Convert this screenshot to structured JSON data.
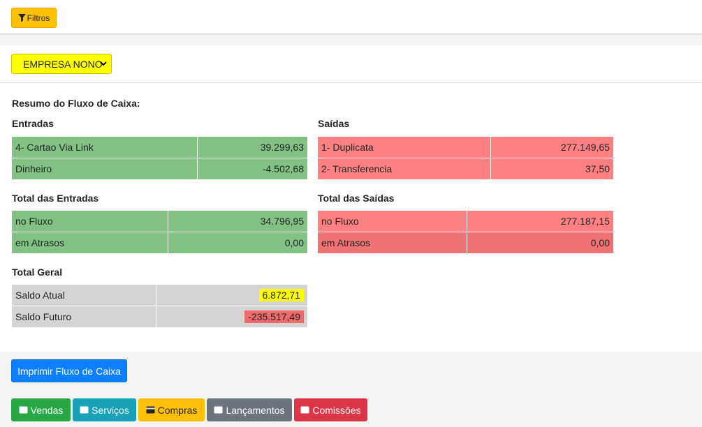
{
  "toolbar": {
    "filtros_label": "Filtros"
  },
  "empresa_select": {
    "value": "EMPRESA NONO"
  },
  "resumo_title": "Resumo do Fluxo de Caixa:",
  "entradas": {
    "title": "Entradas",
    "rows": [
      {
        "label": "4- Cartao Via Link",
        "value": "39.299,63"
      },
      {
        "label": "Dinheiro",
        "value": "-4.502,68"
      }
    ]
  },
  "saidas": {
    "title": "Saídas",
    "rows": [
      {
        "label": "1- Duplicata",
        "value": "277.149,65"
      },
      {
        "label": "2- Transferencia",
        "value": "37,50"
      }
    ]
  },
  "total_entradas": {
    "title": "Total das Entradas",
    "rows": [
      {
        "label": "no Fluxo",
        "value": "34.796,95"
      },
      {
        "label": "em Atrasos",
        "value": "0,00"
      }
    ]
  },
  "total_saidas": {
    "title": "Total das Saídas",
    "rows": [
      {
        "label": "no Fluxo",
        "value": "277.187,15"
      },
      {
        "label": "em Atrasos",
        "value": "0,00"
      }
    ]
  },
  "total_geral": {
    "title": "Total Geral",
    "rows": [
      {
        "label": "Saldo Atual",
        "value": "6.872,71",
        "highlight": "#ffff00"
      },
      {
        "label": "Saldo Futuro",
        "value": "-235.517,49",
        "highlight": "#ef6b6b"
      }
    ]
  },
  "print_button": "Imprimir Fluxo de Caixa",
  "nav_buttons": [
    {
      "label": "Vendas",
      "color": "#28a745",
      "text": "#ffffff"
    },
    {
      "label": "Serviços",
      "color": "#17a2b8",
      "text": "#ffffff"
    },
    {
      "label": "Compras",
      "color": "#ffc107",
      "text": "#212529"
    },
    {
      "label": "Lançamentos",
      "color": "#6c757d",
      "text": "#ffffff"
    },
    {
      "label": "Comissões",
      "color": "#dc3545",
      "text": "#ffffff"
    }
  ]
}
